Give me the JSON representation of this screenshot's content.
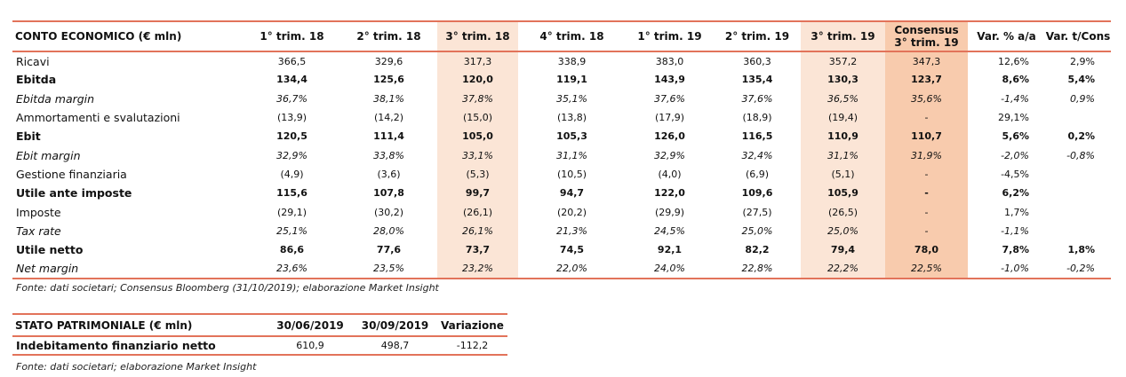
{
  "income": {
    "title": "CONTO ECONOMICO (€ mln)",
    "columns": [
      "1° trim. 18",
      "2° trim. 18",
      "3° trim. 18",
      "4° trim. 18",
      "1° trim. 19",
      "2° trim. 19",
      "3° trim. 19",
      "Consensus\n3° trim. 19",
      "Var. % a/a",
      "Var. t/Cons"
    ],
    "rows": [
      {
        "label": "Ricavi",
        "values": [
          "366,5",
          "329,6",
          "317,3",
          "338,9",
          "383,0",
          "360,3",
          "357,2",
          "347,3",
          "12,6%",
          "2,9%"
        ]
      },
      {
        "label": "Ebitda",
        "values": [
          "134,4",
          "125,6",
          "120,0",
          "119,1",
          "143,9",
          "135,4",
          "130,3",
          "123,7",
          "8,6%",
          "5,4%"
        ]
      },
      {
        "label": "Ebitda margin",
        "values": [
          "36,7%",
          "38,1%",
          "37,8%",
          "35,1%",
          "37,6%",
          "37,6%",
          "36,5%",
          "35,6%",
          "-1,4%",
          "0,9%"
        ]
      },
      {
        "label": "Ammortamenti e svalutazioni",
        "values": [
          "(13,9)",
          "(14,2)",
          "(15,0)",
          "(13,8)",
          "(17,9)",
          "(18,9)",
          "(19,4)",
          "-",
          "29,1%",
          ""
        ]
      },
      {
        "label": "Ebit",
        "values": [
          "120,5",
          "111,4",
          "105,0",
          "105,3",
          "126,0",
          "116,5",
          "110,9",
          "110,7",
          "5,6%",
          "0,2%"
        ]
      },
      {
        "label": "Ebit margin",
        "values": [
          "32,9%",
          "33,8%",
          "33,1%",
          "31,1%",
          "32,9%",
          "32,4%",
          "31,1%",
          "31,9%",
          "-2,0%",
          "-0,8%"
        ]
      },
      {
        "label": "Gestione finanziaria",
        "values": [
          "(4,9)",
          "(3,6)",
          "(5,3)",
          "(10,5)",
          "(4,0)",
          "(6,9)",
          "(5,1)",
          "-",
          "-4,5%",
          ""
        ]
      },
      {
        "label": "Utile ante imposte",
        "values": [
          "115,6",
          "107,8",
          "99,7",
          "94,7",
          "122,0",
          "109,6",
          "105,9",
          "-",
          "6,2%",
          ""
        ]
      },
      {
        "label": "Imposte",
        "values": [
          "(29,1)",
          "(30,2)",
          "(26,1)",
          "(20,2)",
          "(29,9)",
          "(27,5)",
          "(26,5)",
          "-",
          "1,7%",
          ""
        ]
      },
      {
        "label": "Tax rate",
        "values": [
          "25,1%",
          "28,0%",
          "26,1%",
          "21,3%",
          "24,5%",
          "25,0%",
          "25,0%",
          "-",
          "-1,1%",
          ""
        ]
      },
      {
        "label": "Utile netto",
        "values": [
          "86,6",
          "77,6",
          "73,7",
          "74,5",
          "92,1",
          "82,2",
          "79,4",
          "78,0",
          "7,8%",
          "1,8%"
        ]
      },
      {
        "label": "Net margin",
        "values": [
          "23,6%",
          "23,5%",
          "23,2%",
          "22,0%",
          "24,0%",
          "22,8%",
          "22,2%",
          "22,5%",
          "-1,0%",
          "-0,2%"
        ]
      }
    ],
    "source": "Fonte: dati societari; Consensus Bloomberg (31/10/2019); elaborazione Market Insight"
  },
  "balance": {
    "title": "STATO PATRIMONIALE (€ mln)",
    "columns": [
      "30/06/2019",
      "30/09/2019",
      "Variazione"
    ],
    "row": {
      "label": "Indebitamento finanziario netto",
      "values": [
        "610,9",
        "498,7",
        "-112,2"
      ]
    },
    "source": "Fonte: dati societari; elaborazione Market Insight"
  },
  "colors": {
    "rule": "#e2735a",
    "highlight_light": "#fbe5d6",
    "highlight_dark": "#f8cbad"
  }
}
